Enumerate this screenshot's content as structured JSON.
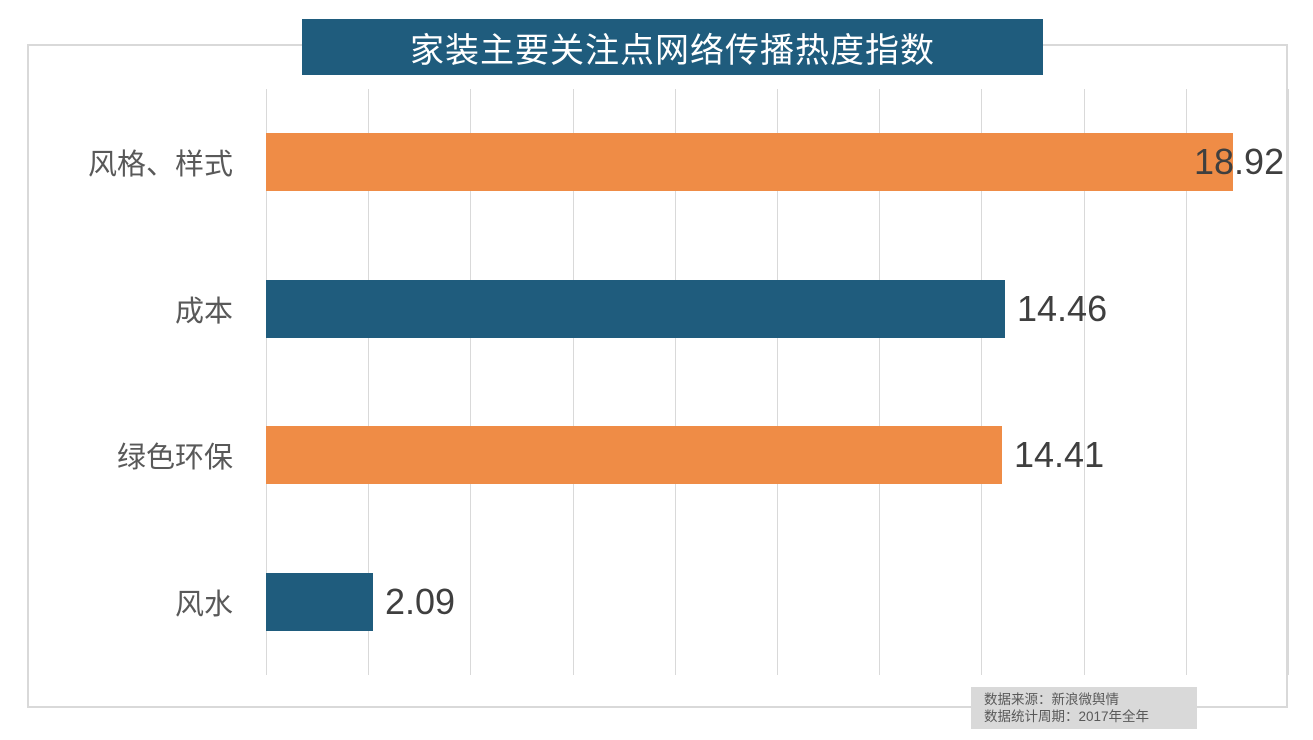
{
  "title": {
    "text": "家装主要关注点网络传播热度指数"
  },
  "chart_data": {
    "type": "bar",
    "orientation": "horizontal",
    "title": "家装主要关注点网络传播热度指数",
    "categories": [
      "风格、样式",
      "成本",
      "绿色环保",
      "风水"
    ],
    "values": [
      18.92,
      14.46,
      14.41,
      2.09
    ],
    "value_labels": [
      "18.92",
      "14.46",
      "14.41",
      "2.09"
    ],
    "bar_colors": [
      "#EF8C46",
      "#1F5C7D",
      "#EF8C46",
      "#1F5C7D"
    ],
    "xlim": [
      0,
      20
    ],
    "grid_interval": 2,
    "grid": true,
    "legend": false,
    "axis_tick_labels_visible": false,
    "xlabel": "",
    "ylabel": ""
  },
  "source_note": {
    "line1": "数据来源：新浪微舆情",
    "line2": "数据统计周期：2017年全年"
  },
  "colors": {
    "title_bg": "#1F5C7D",
    "title_text": "#FFFFFF",
    "bar_orange": "#EF8C46",
    "bar_teal": "#1F5C7D",
    "gridline": "#D9D9D9",
    "chart_border": "#D9D9D9",
    "category_text": "#595959",
    "value_text": "#3F3F3F",
    "note_bg": "#D9D9D9",
    "note_text": "#595959"
  }
}
